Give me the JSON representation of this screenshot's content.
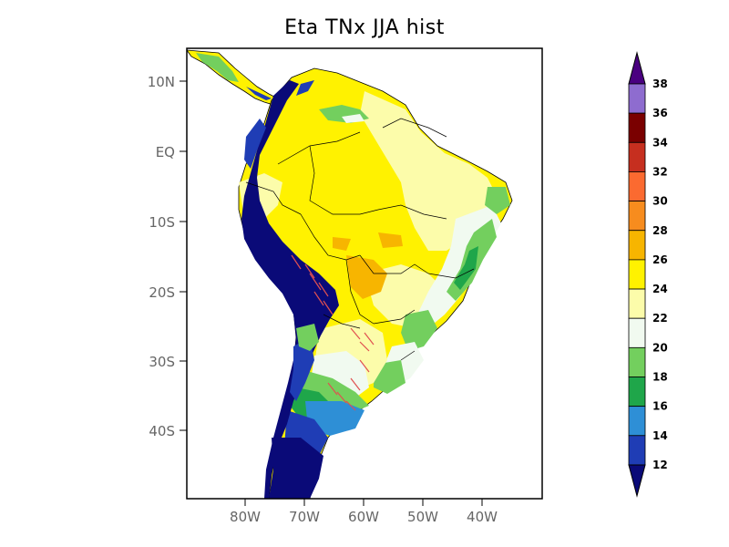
{
  "title": "Eta TNx JJA hist",
  "axes": {
    "lat_ticks": [
      "10N",
      "EQ",
      "10S",
      "20S",
      "30S",
      "40S"
    ],
    "lon_ticks": [
      "80W",
      "70W",
      "60W",
      "50W",
      "40W"
    ]
  },
  "colorbar": {
    "levels": [
      "12",
      "14",
      "16",
      "18",
      "20",
      "22",
      "24",
      "26",
      "28",
      "30",
      "32",
      "34",
      "36",
      "38"
    ],
    "colors": [
      "#1f3db5",
      "#2e8fd6",
      "#1fa64a",
      "#73cf5e",
      "#f1faf0",
      "#fcfcaa",
      "#fff200",
      "#f7b500",
      "#f78c1e",
      "#fb6a30",
      "#c62f1f",
      "#7a0000",
      "#8e6ccf",
      "#4a0080"
    ],
    "under_color": "#0a0a78",
    "over_color": "#4a0080"
  },
  "colors": {
    "ocean": "#ffffff",
    "frame": "#000000",
    "border": "#000000",
    "hatch": "#e05050"
  }
}
